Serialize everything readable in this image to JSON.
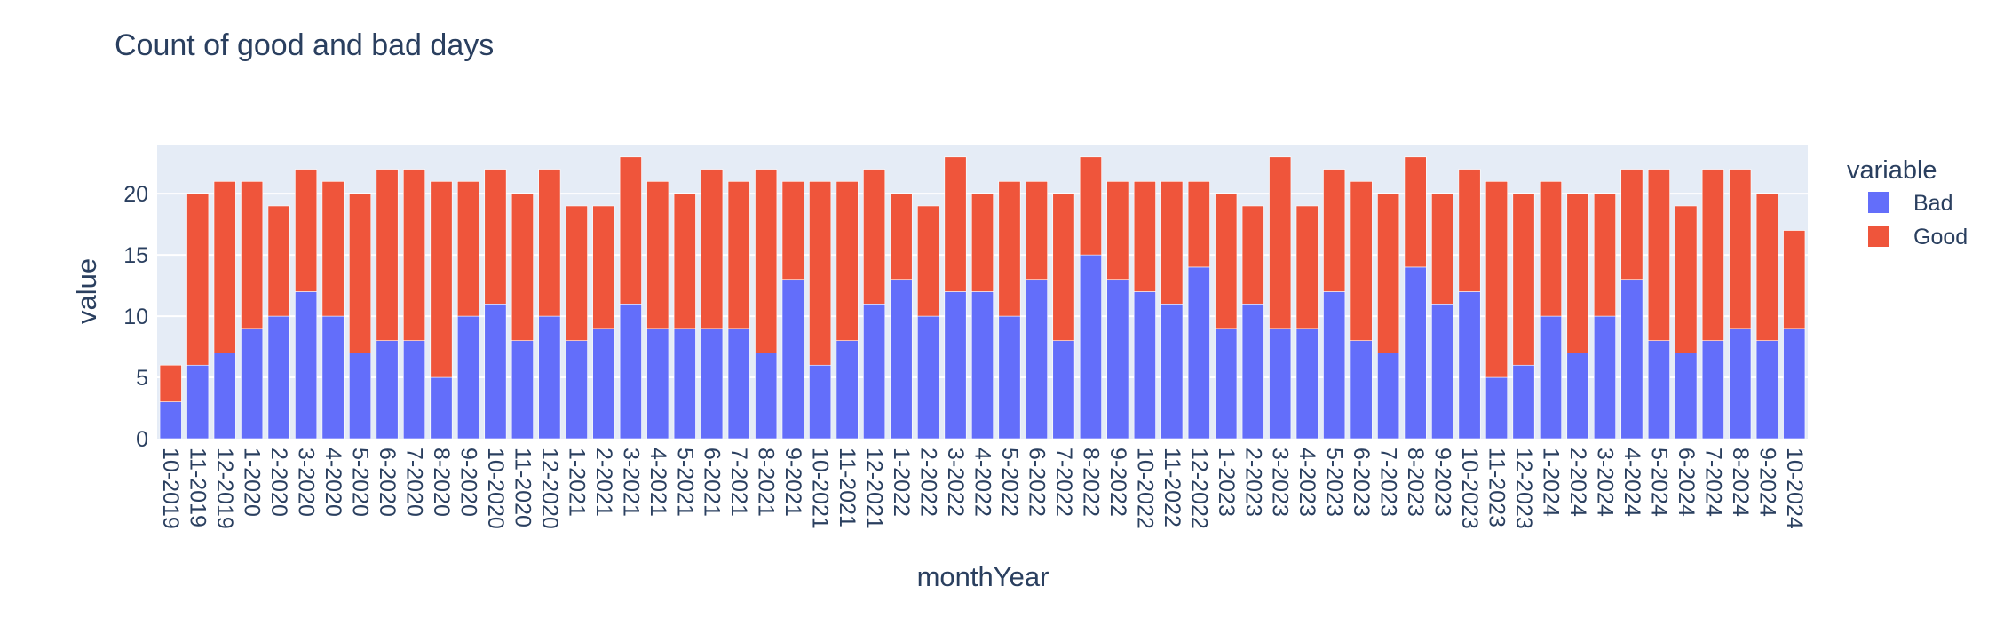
{
  "chart_data": {
    "type": "bar",
    "barmode": "stack",
    "title": "Count of good and bad days",
    "xlabel": "monthYear",
    "ylabel": "value",
    "ylim": [
      0,
      24
    ],
    "yticks": [
      0,
      5,
      10,
      15,
      20
    ],
    "grid": true,
    "legend_title": "variable",
    "legend_position": "right",
    "categories": [
      "10-2019",
      "11-2019",
      "12-2019",
      "1-2020",
      "2-2020",
      "3-2020",
      "4-2020",
      "5-2020",
      "6-2020",
      "7-2020",
      "8-2020",
      "9-2020",
      "10-2020",
      "11-2020",
      "12-2020",
      "1-2021",
      "2-2021",
      "3-2021",
      "4-2021",
      "5-2021",
      "6-2021",
      "7-2021",
      "8-2021",
      "9-2021",
      "10-2021",
      "11-2021",
      "12-2021",
      "1-2022",
      "2-2022",
      "3-2022",
      "4-2022",
      "5-2022",
      "6-2022",
      "7-2022",
      "8-2022",
      "9-2022",
      "10-2022",
      "11-2022",
      "12-2022",
      "1-2023",
      "2-2023",
      "3-2023",
      "4-2023",
      "5-2023",
      "6-2023",
      "7-2023",
      "8-2023",
      "9-2023",
      "10-2023",
      "11-2023",
      "12-2023",
      "1-2024",
      "2-2024",
      "3-2024",
      "4-2024",
      "5-2024",
      "6-2024",
      "7-2024",
      "8-2024",
      "9-2024",
      "10-2024"
    ],
    "series": [
      {
        "name": "Bad",
        "color": "#636efa",
        "values": [
          3,
          6,
          7,
          9,
          10,
          12,
          10,
          7,
          8,
          8,
          5,
          10,
          11,
          8,
          10,
          8,
          9,
          11,
          9,
          9,
          9,
          9,
          7,
          13,
          6,
          8,
          11,
          13,
          10,
          12,
          12,
          10,
          13,
          8,
          15,
          13,
          12,
          11,
          14,
          9,
          11,
          9,
          9,
          12,
          8,
          7,
          14,
          11,
          12,
          5,
          6,
          10,
          7,
          10,
          13,
          8,
          7,
          8,
          9,
          8,
          9
        ]
      },
      {
        "name": "Good",
        "color": "#ef553b",
        "values": [
          3,
          14,
          14,
          12,
          9,
          10,
          11,
          13,
          14,
          14,
          16,
          11,
          11,
          12,
          12,
          11,
          10,
          12,
          12,
          11,
          13,
          12,
          15,
          8,
          15,
          13,
          11,
          7,
          9,
          11,
          8,
          11,
          8,
          12,
          8,
          8,
          9,
          10,
          7,
          11,
          8,
          14,
          10,
          10,
          13,
          13,
          9,
          9,
          10,
          16,
          14,
          11,
          13,
          10,
          9,
          14,
          12,
          14,
          13,
          12,
          8
        ]
      }
    ]
  }
}
